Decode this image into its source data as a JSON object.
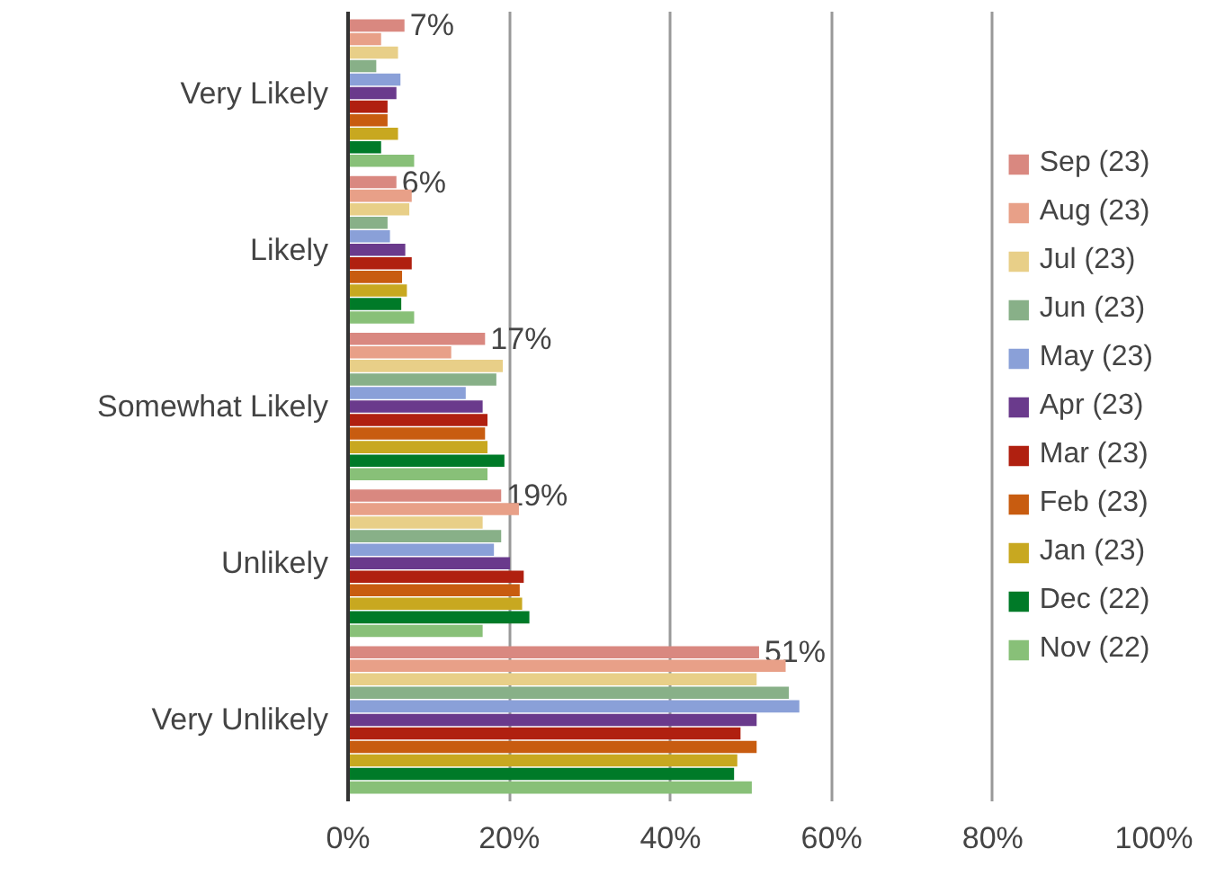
{
  "chart_data": {
    "type": "bar",
    "orientation": "horizontal",
    "categories": [
      "Very Likely",
      "Likely",
      "Somewhat Likely",
      "Unlikely",
      "Very Unlikely"
    ],
    "series": [
      {
        "name": "Sep (23)",
        "color": "#d98880",
        "values": [
          7,
          6,
          17,
          19,
          51
        ],
        "value_labels": [
          "7%",
          "6%",
          "17%",
          "19%",
          "51%"
        ]
      },
      {
        "name": "Aug (23)",
        "color": "#e8a088",
        "values": [
          4.1,
          7.9,
          12.8,
          21.2,
          54.3
        ]
      },
      {
        "name": "Jul (23)",
        "color": "#e8cf88",
        "values": [
          6.2,
          7.6,
          19.2,
          16.7,
          50.7
        ]
      },
      {
        "name": "Jun (23)",
        "color": "#88b088",
        "values": [
          3.5,
          4.9,
          18.4,
          19.0,
          54.7
        ]
      },
      {
        "name": "May (23)",
        "color": "#8aa0d8",
        "values": [
          6.5,
          5.2,
          14.6,
          18.1,
          56.0
        ]
      },
      {
        "name": "Apr (23)",
        "color": "#6a3a8c",
        "values": [
          6.0,
          7.1,
          16.7,
          20.1,
          50.7
        ]
      },
      {
        "name": "Mar (23)",
        "color": "#b02010",
        "values": [
          4.9,
          7.9,
          17.3,
          21.8,
          48.7
        ]
      },
      {
        "name": "Feb (23)",
        "color": "#c85c10",
        "values": [
          4.9,
          6.7,
          17.0,
          21.3,
          50.7
        ]
      },
      {
        "name": "Jan (23)",
        "color": "#c8a820",
        "values": [
          6.2,
          7.3,
          17.3,
          21.6,
          48.3
        ]
      },
      {
        "name": "Dec (22)",
        "color": "#007a28",
        "values": [
          4.1,
          6.6,
          19.4,
          22.5,
          47.9
        ]
      },
      {
        "name": "Nov (22)",
        "color": "#88c078",
        "values": [
          8.2,
          8.2,
          17.3,
          16.7,
          50.1
        ]
      }
    ],
    "xlim": [
      0,
      100
    ],
    "xticks": [
      {
        "value": 0,
        "label": "0%"
      },
      {
        "value": 20,
        "label": "20%"
      },
      {
        "value": 40,
        "label": "40%"
      },
      {
        "value": 60,
        "label": "60%"
      },
      {
        "value": 80,
        "label": "80%"
      },
      {
        "value": 100,
        "label": "100%"
      }
    ],
    "grid": "x",
    "legend": "right"
  }
}
